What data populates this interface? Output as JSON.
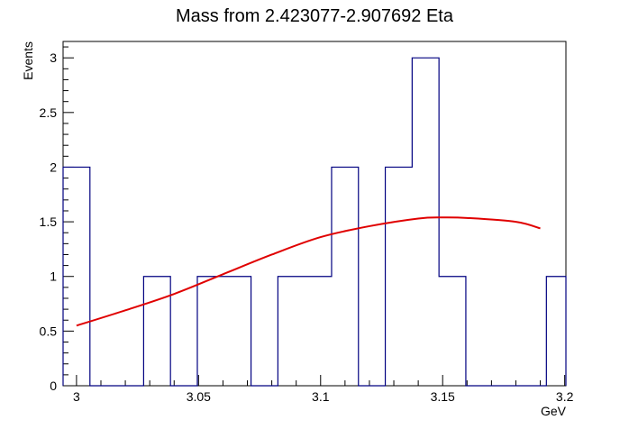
{
  "chart_data": {
    "type": "histogram",
    "title": "Mass from 2.423077-2.907692 Eta",
    "xlabel": "GeV",
    "ylabel": "Events",
    "xlim": [
      2.9945,
      3.2005
    ],
    "ylim": [
      0,
      3.15
    ],
    "x_ticks": [
      3.0,
      3.05,
      3.1,
      3.15,
      3.2
    ],
    "x_tick_labels": [
      "3",
      "3.05",
      "3.1",
      "3.15",
      "3.2"
    ],
    "y_ticks": [
      0,
      0.5,
      1,
      1.5,
      2,
      2.5,
      3
    ],
    "y_tick_labels": [
      "0",
      "0.5",
      "1",
      "1.5",
      "2",
      "2.5",
      "3"
    ],
    "bin_edges": [
      2.9945,
      3.0055,
      3.0165,
      3.0275,
      3.0385,
      3.0495,
      3.0605,
      3.0715,
      3.0825,
      3.0935,
      3.1045,
      3.1155,
      3.1265,
      3.1375,
      3.1485,
      3.1595,
      3.1705,
      3.1815,
      3.1925,
      3.2005
    ],
    "counts": [
      2,
      0,
      0,
      1,
      0,
      1,
      1,
      0,
      1,
      1,
      2,
      0,
      2,
      3,
      1,
      0,
      0,
      0,
      1
    ],
    "fit": {
      "x": [
        3.0,
        3.02,
        3.04,
        3.06,
        3.08,
        3.1,
        3.12,
        3.14,
        3.15,
        3.16,
        3.18,
        3.19
      ],
      "y": [
        0.55,
        0.69,
        0.84,
        1.02,
        1.2,
        1.36,
        1.46,
        1.53,
        1.54,
        1.535,
        1.5,
        1.44
      ]
    },
    "histogram_color": "#000080",
    "fit_color": "#e00000",
    "grid": false,
    "legend": "none"
  }
}
